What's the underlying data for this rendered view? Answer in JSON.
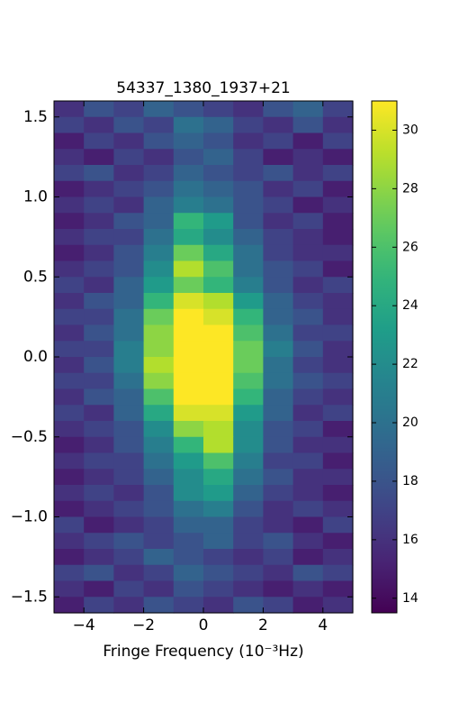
{
  "chart_data": {
    "type": "heatmap",
    "title": "54337_1380_1937+21",
    "x_label": "Fringe Frequency (10⁻³Hz)",
    "colormap": "viridis",
    "xlim": [
      -5,
      5
    ],
    "ylim": [
      -1.6,
      1.6
    ],
    "xticks": [
      {
        "value": -4,
        "label": "−4"
      },
      {
        "value": -2,
        "label": "−2"
      },
      0,
      2,
      4
    ],
    "yticks": [
      {
        "value": 1.5,
        "label": "1.5"
      },
      {
        "value": 1,
        "label": "1.0"
      },
      {
        "value": 0.5,
        "label": "0.5"
      },
      {
        "value": 0,
        "label": "0.0"
      },
      {
        "value": -0.5,
        "label": "−0.5"
      },
      {
        "value": -1,
        "label": "−1.0"
      },
      {
        "value": -1.5,
        "label": "−1.5"
      }
    ],
    "clim": [
      13.5,
      31
    ],
    "cticks": [
      14,
      16,
      18,
      20,
      22,
      24,
      26,
      28,
      30
    ],
    "values": [
      [
        16,
        18,
        17,
        19,
        18,
        17,
        16,
        18,
        19,
        17
      ],
      [
        17,
        16,
        18,
        17,
        20,
        19,
        17,
        16,
        18,
        16
      ],
      [
        15,
        17,
        16,
        18,
        19,
        18,
        16,
        17,
        15,
        17
      ],
      [
        16,
        15,
        17,
        16,
        18,
        19,
        17,
        15,
        16,
        15
      ],
      [
        17,
        18,
        16,
        17,
        19,
        18,
        17,
        18,
        16,
        17
      ],
      [
        15,
        16,
        17,
        18,
        20,
        19,
        18,
        16,
        17,
        15
      ],
      [
        16,
        17,
        16,
        19,
        21,
        20,
        18,
        17,
        15,
        16
      ],
      [
        15,
        16,
        18,
        19,
        25,
        23,
        18,
        16,
        17,
        15
      ],
      [
        16,
        17,
        17,
        20,
        24,
        22,
        19,
        17,
        16,
        15
      ],
      [
        15,
        16,
        18,
        21,
        27,
        24,
        20,
        17,
        16,
        16
      ],
      [
        16,
        17,
        18,
        22,
        29,
        26,
        20,
        18,
        17,
        15
      ],
      [
        17,
        16,
        19,
        23,
        27,
        25,
        21,
        18,
        16,
        17
      ],
      [
        16,
        18,
        19,
        25,
        30,
        29,
        23,
        19,
        17,
        16
      ],
      [
        17,
        17,
        20,
        27,
        31,
        30,
        25,
        19,
        18,
        16
      ],
      [
        16,
        18,
        20,
        28,
        31,
        31,
        26,
        20,
        17,
        17
      ],
      [
        17,
        17,
        21,
        28,
        31,
        31,
        27,
        21,
        18,
        16
      ],
      [
        16,
        18,
        21,
        29,
        31,
        31,
        27,
        20,
        17,
        16
      ],
      [
        17,
        17,
        20,
        28,
        31,
        31,
        26,
        20,
        18,
        17
      ],
      [
        16,
        18,
        19,
        26,
        31,
        31,
        25,
        19,
        17,
        16
      ],
      [
        17,
        16,
        19,
        24,
        30,
        30,
        23,
        19,
        16,
        17
      ],
      [
        16,
        17,
        18,
        22,
        28,
        29,
        22,
        18,
        17,
        15
      ],
      [
        15,
        16,
        18,
        21,
        25,
        29,
        22,
        18,
        16,
        16
      ],
      [
        16,
        17,
        17,
        20,
        23,
        26,
        21,
        17,
        17,
        15
      ],
      [
        15,
        16,
        17,
        19,
        22,
        24,
        20,
        18,
        16,
        16
      ],
      [
        16,
        17,
        16,
        18,
        22,
        23,
        19,
        17,
        16,
        15
      ],
      [
        15,
        16,
        17,
        18,
        20,
        21,
        18,
        16,
        17,
        16
      ],
      [
        17,
        15,
        16,
        17,
        19,
        19,
        17,
        16,
        15,
        17
      ],
      [
        16,
        17,
        18,
        17,
        18,
        19,
        17,
        18,
        16,
        15
      ],
      [
        15,
        16,
        17,
        19,
        18,
        17,
        16,
        17,
        15,
        16
      ],
      [
        17,
        18,
        16,
        17,
        19,
        18,
        17,
        16,
        18,
        17
      ],
      [
        16,
        15,
        17,
        16,
        18,
        17,
        16,
        15,
        16,
        15
      ],
      [
        15,
        17,
        16,
        18,
        17,
        16,
        18,
        17,
        15,
        16
      ]
    ]
  }
}
